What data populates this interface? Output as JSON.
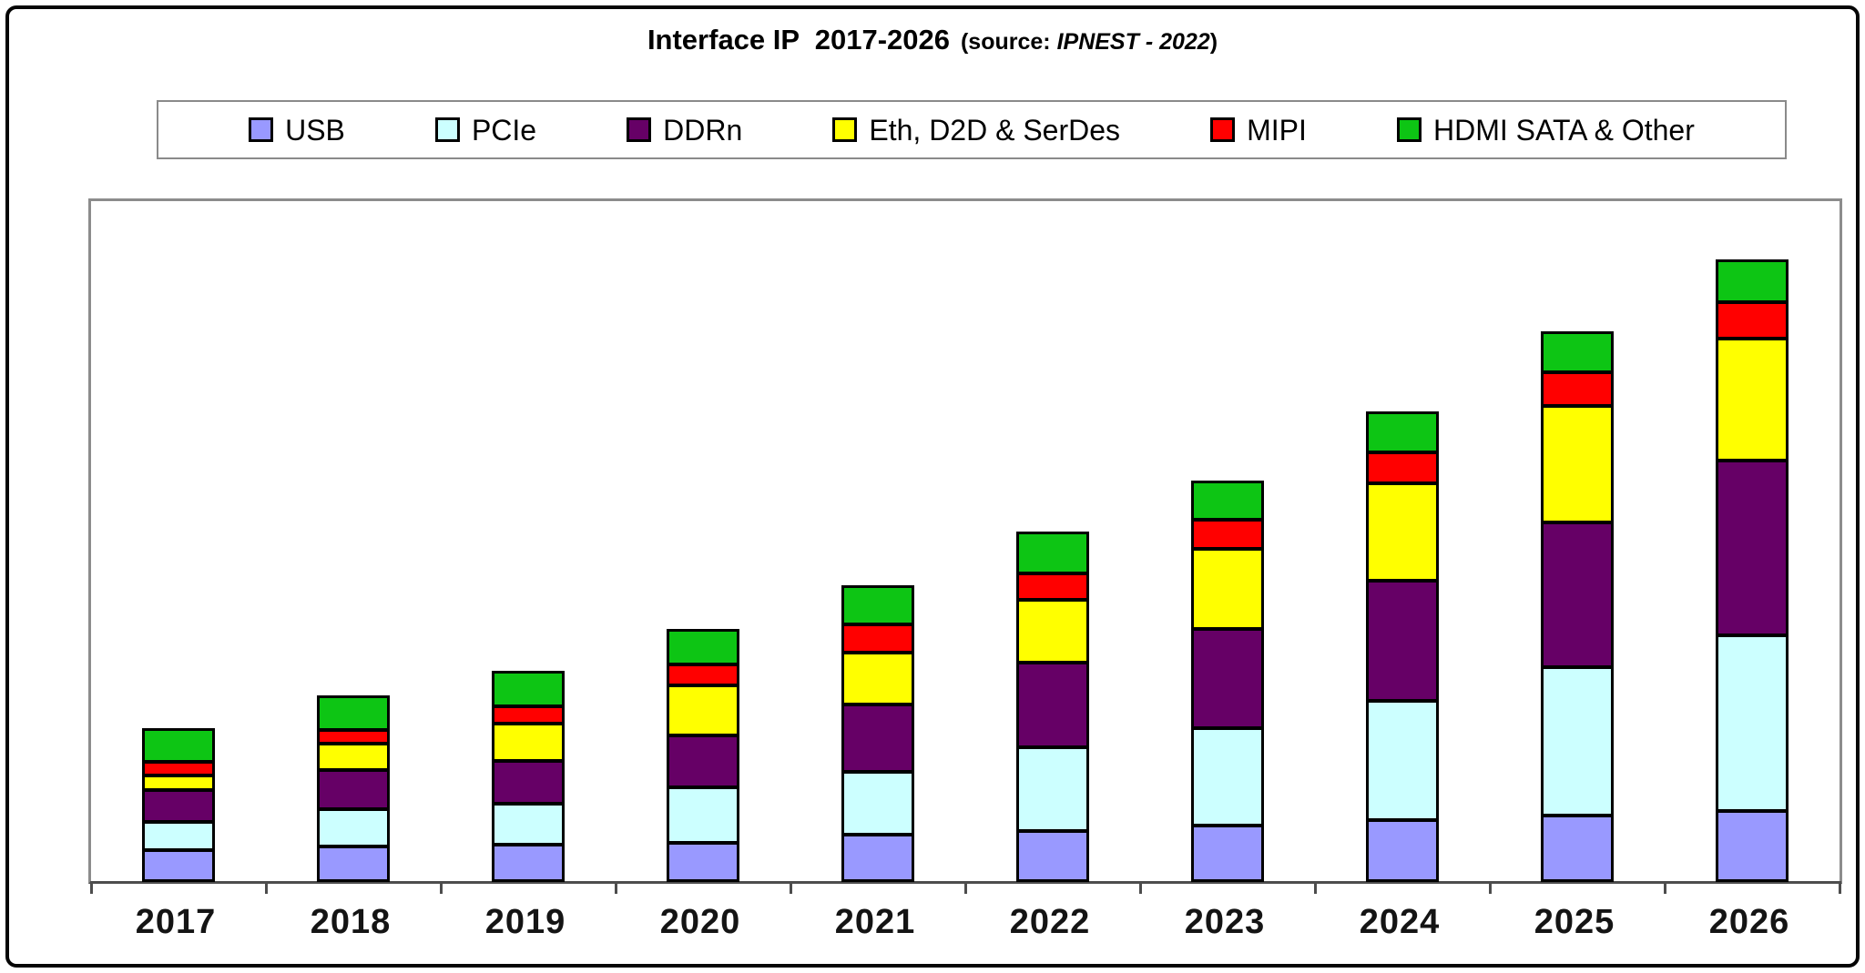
{
  "title": {
    "main": "Interface IP  2017-2026",
    "source_prefix": "(source: ",
    "source_name": "IPNEST - 2022",
    "source_suffix": ")"
  },
  "legend": [
    {
      "label": "USB",
      "color": "#9999FF"
    },
    {
      "label": "PCIe",
      "color": "#CCFFFF"
    },
    {
      "label": "DDRn",
      "color": "#660066"
    },
    {
      "label": "Eth, D2D & SerDes",
      "color": "#FFFF00"
    },
    {
      "label": "MIPI",
      "color": "#FF0000"
    },
    {
      "label": "HDMI SATA & Other",
      "color": "#0DC514"
    }
  ],
  "chart_data": {
    "type": "bar",
    "subtype": "stacked",
    "title": "Interface IP 2017-2026 (source: IPNEST - 2022)",
    "categories": [
      "2017",
      "2018",
      "2019",
      "2020",
      "2021",
      "2022",
      "2023",
      "2024",
      "2025",
      "2026"
    ],
    "series": [
      {
        "name": "USB",
        "color": "#9999FF",
        "values": [
          34,
          38,
          40,
          42,
          51,
          55,
          61,
          67,
          72,
          77
        ]
      },
      {
        "name": "PCIe",
        "color": "#CCFFFF",
        "values": [
          31,
          41,
          45,
          61,
          69,
          92,
          107,
          131,
          163,
          193
        ]
      },
      {
        "name": "DDRn",
        "color": "#660066",
        "values": [
          35,
          43,
          47,
          57,
          74,
          93,
          109,
          132,
          159,
          192
        ]
      },
      {
        "name": "Eth, D2D & SerDes",
        "color": "#FFFF00",
        "values": [
          16,
          29,
          41,
          55,
          57,
          69,
          88,
          107,
          128,
          134
        ]
      },
      {
        "name": "MIPI",
        "color": "#FF0000",
        "values": [
          15,
          15,
          19,
          23,
          31,
          29,
          32,
          34,
          37,
          40
        ]
      },
      {
        "name": "HDMI SATA & Other",
        "color": "#0DC514",
        "values": [
          36,
          37,
          38,
          38,
          42,
          45,
          42,
          44,
          44,
          46
        ]
      }
    ],
    "totals": [
      167,
      203,
      230,
      276,
      324,
      383,
      439,
      515,
      603,
      682
    ],
    "xlabel": "",
    "ylabel": "",
    "y_axis_note": "y-axis unlabeled in source image; values are relative units estimated from bar pixel heights",
    "ylim": [
      0,
      747
    ],
    "grid": false,
    "legend_position": "top"
  }
}
